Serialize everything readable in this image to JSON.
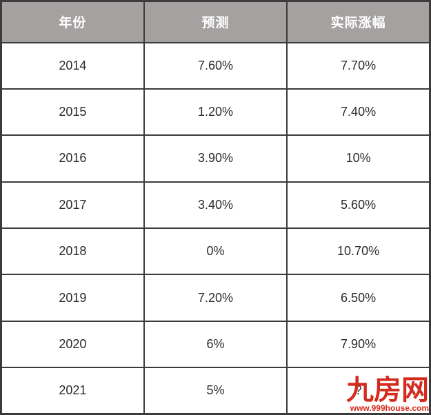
{
  "table": {
    "headers": [
      "年份",
      "预测",
      "实际涨幅"
    ],
    "rows": [
      [
        "2014",
        "7.60%",
        "7.70%"
      ],
      [
        "2015",
        "1.20%",
        "7.40%"
      ],
      [
        "2016",
        "3.90%",
        "10%"
      ],
      [
        "2017",
        "3.40%",
        "5.60%"
      ],
      [
        "2018",
        "0%",
        "10.70%"
      ],
      [
        "2019",
        "7.20%",
        "6.50%"
      ],
      [
        "2020",
        "6%",
        "7.90%"
      ],
      [
        "2021",
        "5%",
        "?"
      ]
    ]
  },
  "watermark": {
    "brand": "九房网",
    "url": "www.999house.com"
  },
  "colors": {
    "header_bg": "#a6a1a1",
    "header_text": "#ffffff",
    "border": "#3b3b3b",
    "cell_text": "#2b2b2b",
    "watermark_red": "#d32b1e"
  },
  "chart_data": {
    "type": "table",
    "title": "",
    "columns": [
      "年份",
      "预测",
      "实际涨幅"
    ],
    "rows": [
      {
        "year": "2014",
        "forecast": "7.60%",
        "actual": "7.70%"
      },
      {
        "year": "2015",
        "forecast": "1.20%",
        "actual": "7.40%"
      },
      {
        "year": "2016",
        "forecast": "3.90%",
        "actual": "10%"
      },
      {
        "year": "2017",
        "forecast": "3.40%",
        "actual": "5.60%"
      },
      {
        "year": "2018",
        "forecast": "0%",
        "actual": "10.70%"
      },
      {
        "year": "2019",
        "forecast": "7.20%",
        "actual": "6.50%"
      },
      {
        "year": "2020",
        "forecast": "6%",
        "actual": "7.90%"
      },
      {
        "year": "2021",
        "forecast": "5%",
        "actual": "?"
      }
    ]
  }
}
